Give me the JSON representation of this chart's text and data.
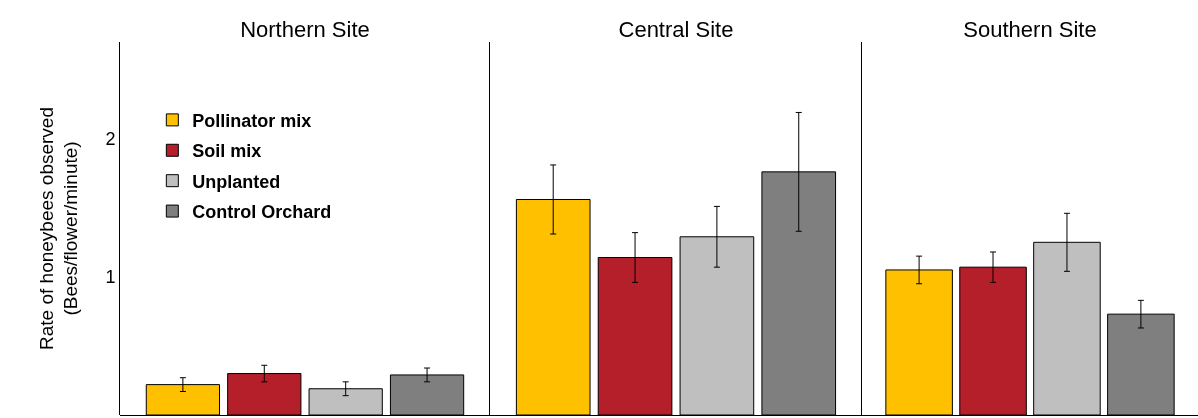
{
  "chart_data": {
    "type": "bar",
    "ylabel": "Rate of honeybees observed\n(Bees/flower/minute)",
    "categories": [
      "Northern Site",
      "Central Site",
      "Southern Site"
    ],
    "ylim": [
      0,
      2.7
    ],
    "yticks": [
      1,
      2
    ],
    "legend": "top left",
    "series": [
      {
        "name": "Pollinator mix",
        "color": "#ffc000",
        "values": [
          0.22,
          1.56,
          1.05
        ],
        "errors": [
          0.05,
          0.25,
          0.1
        ]
      },
      {
        "name": "Soil mix",
        "color": "#b51f2a",
        "values": [
          0.3,
          1.14,
          1.07
        ],
        "errors": [
          0.06,
          0.18,
          0.11
        ]
      },
      {
        "name": "Unplanted",
        "color": "#bfbfbf",
        "values": [
          0.19,
          1.29,
          1.25
        ],
        "errors": [
          0.05,
          0.22,
          0.21
        ]
      },
      {
        "name": "Control Orchard",
        "color": "#7f7f7f",
        "values": [
          0.29,
          1.76,
          0.73
        ],
        "errors": [
          0.05,
          0.43,
          0.1
        ]
      }
    ]
  }
}
